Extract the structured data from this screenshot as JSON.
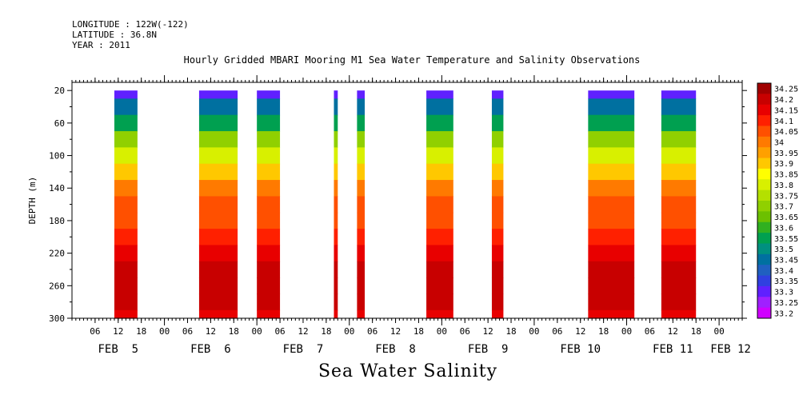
{
  "header": {
    "longitude": "LONGITUDE : 122W(-122)",
    "latitude": "LATITUDE : 36.8N",
    "year": "YEAR : 2011"
  },
  "chart_data": {
    "type": "heatmap",
    "title": "Hourly Gridded MBARI Mooring M1 Sea Water Temperature and Salinity Observations",
    "footer_title": "Sea Water Salinity",
    "ylabel": "DEPTH (m)",
    "ylim": [
      300,
      10
    ],
    "y_reversed": true,
    "y_ticks": [
      20,
      60,
      100,
      140,
      180,
      220,
      260,
      300
    ],
    "xlim_hours": [
      0,
      174
    ],
    "x_hour_ticks": [
      {
        "h": 6,
        "label": "06"
      },
      {
        "h": 12,
        "label": "12"
      },
      {
        "h": 18,
        "label": "18"
      },
      {
        "h": 24,
        "label": "00"
      },
      {
        "h": 30,
        "label": "06"
      },
      {
        "h": 36,
        "label": "12"
      },
      {
        "h": 42,
        "label": "18"
      },
      {
        "h": 48,
        "label": "00"
      },
      {
        "h": 54,
        "label": "06"
      },
      {
        "h": 60,
        "label": "12"
      },
      {
        "h": 66,
        "label": "18"
      },
      {
        "h": 72,
        "label": "00"
      },
      {
        "h": 78,
        "label": "06"
      },
      {
        "h": 84,
        "label": "12"
      },
      {
        "h": 90,
        "label": "18"
      },
      {
        "h": 96,
        "label": "00"
      },
      {
        "h": 102,
        "label": "06"
      },
      {
        "h": 108,
        "label": "12"
      },
      {
        "h": 114,
        "label": "18"
      },
      {
        "h": 120,
        "label": "00"
      },
      {
        "h": 126,
        "label": "06"
      },
      {
        "h": 132,
        "label": "12"
      },
      {
        "h": 138,
        "label": "18"
      },
      {
        "h": 144,
        "label": "00"
      },
      {
        "h": 150,
        "label": "06"
      },
      {
        "h": 156,
        "label": "12"
      },
      {
        "h": 162,
        "label": "18"
      },
      {
        "h": 168,
        "label": "00"
      }
    ],
    "x_day_labels": [
      {
        "h": 12,
        "label": "FEB  5"
      },
      {
        "h": 36,
        "label": "FEB  6"
      },
      {
        "h": 60,
        "label": "FEB  7"
      },
      {
        "h": 84,
        "label": "FEB  8"
      },
      {
        "h": 108,
        "label": "FEB  9"
      },
      {
        "h": 132,
        "label": "FEB 10"
      },
      {
        "h": 156,
        "label": "FEB 11"
      },
      {
        "h": 171,
        "label": "FEB 12"
      }
    ],
    "data_segments": [
      {
        "start": 11,
        "end": 17
      },
      {
        "start": 33,
        "end": 43
      },
      {
        "start": 48,
        "end": 54
      },
      {
        "start": 68,
        "end": 69
      },
      {
        "start": 74,
        "end": 76
      },
      {
        "start": 92,
        "end": 99
      },
      {
        "start": 109,
        "end": 112
      },
      {
        "start": 134,
        "end": 146
      },
      {
        "start": 153,
        "end": 162
      }
    ],
    "depth_profile": [
      {
        "depth": 20,
        "value": 33.3
      },
      {
        "depth": 40,
        "value": 33.42
      },
      {
        "depth": 60,
        "value": 33.55
      },
      {
        "depth": 80,
        "value": 33.68
      },
      {
        "depth": 100,
        "value": 33.78
      },
      {
        "depth": 120,
        "value": 33.86
      },
      {
        "depth": 140,
        "value": 33.97
      },
      {
        "depth": 160,
        "value": 34.03
      },
      {
        "depth": 180,
        "value": 34.05
      },
      {
        "depth": 200,
        "value": 34.1
      },
      {
        "depth": 220,
        "value": 34.14
      },
      {
        "depth": 240,
        "value": 34.18
      },
      {
        "depth": 260,
        "value": 34.2
      },
      {
        "depth": 280,
        "value": 34.18
      },
      {
        "depth": 300,
        "value": 34.13
      }
    ],
    "colorbar_levels": [
      "34.25",
      "34.2",
      "34.15",
      "34.1",
      "34.05",
      "34",
      "33.95",
      "33.9",
      "33.85",
      "33.8",
      "33.75",
      "33.7",
      "33.65",
      "33.6",
      "33.55",
      "33.5",
      "33.45",
      "33.4",
      "33.35",
      "33.3",
      "33.25",
      "33.2"
    ],
    "colorbar_colors": [
      "#a00000",
      "#c80000",
      "#e80000",
      "#ff2000",
      "#ff5000",
      "#ff7a00",
      "#ffa000",
      "#ffc800",
      "#ffff00",
      "#d8f000",
      "#b4e000",
      "#90d000",
      "#6cc000",
      "#30b020",
      "#00a050",
      "#009080",
      "#0070a0",
      "#2060c0",
      "#3040e0",
      "#6020ff",
      "#a020ff",
      "#d000ff"
    ]
  }
}
